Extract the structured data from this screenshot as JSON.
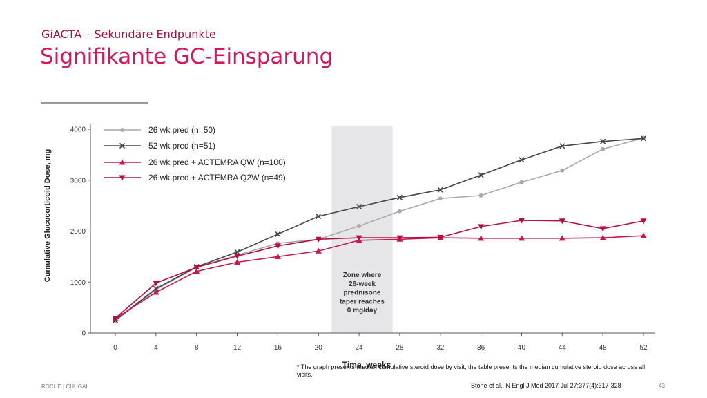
{
  "header": {
    "subtitle": "GiACTA – Sekundäre Endpunkte",
    "title": "Signifikante GC-Einsparung"
  },
  "chart_data": {
    "type": "line",
    "xlabel": "Time, weeks",
    "ylabel": "Cumulative Glucocorticoid Dose, mg",
    "x": [
      0,
      4,
      8,
      12,
      16,
      20,
      24,
      28,
      32,
      36,
      40,
      44,
      48,
      52
    ],
    "xticks": [
      "0",
      "4",
      "8",
      "12",
      "16",
      "20",
      "24",
      "28",
      "32",
      "36",
      "40",
      "44",
      "48",
      "52"
    ],
    "yticks": [
      "0",
      "1000",
      "2000",
      "3000",
      "4000"
    ],
    "xlim": [
      0,
      52
    ],
    "ylim": [
      0,
      4000
    ],
    "grid": false,
    "legend_position": "top-left",
    "shaded_region": {
      "x_start": 21.3,
      "x_end": 27.3,
      "label": "Zone where 26-week prednisone taper reaches 0 mg/day",
      "label_lines": [
        "Zone where",
        "26-week",
        "prednisone",
        "taper reaches",
        "0 mg/day"
      ]
    },
    "series": [
      {
        "name": "26 wk pred (n=50)",
        "color": "#a9a9a9",
        "marker": "circle",
        "values": [
          240,
          850,
          1290,
          1530,
          1760,
          1840,
          2100,
          2390,
          2640,
          2700,
          2960,
          3190,
          3610,
          3830
        ]
      },
      {
        "name": "52 wk pred (n=51)",
        "color": "#454545",
        "marker": "x",
        "values": [
          250,
          870,
          1300,
          1590,
          1940,
          2290,
          2480,
          2660,
          2810,
          3100,
          3400,
          3670,
          3760,
          3820
        ]
      },
      {
        "name": "26 wk pred + ACTEMRA QW (n=100)",
        "color": "#c8174e",
        "marker": "triangle-up",
        "values": [
          280,
          800,
          1210,
          1390,
          1500,
          1610,
          1820,
          1840,
          1870,
          1860,
          1860,
          1860,
          1870,
          1910
        ]
      },
      {
        "name": "26 wk pred + ACTEMRA Q2W (n=49)",
        "color": "#b4103f",
        "marker": "triangle-down",
        "values": [
          290,
          980,
          1290,
          1510,
          1710,
          1840,
          1870,
          1870,
          1880,
          2090,
          2210,
          2200,
          2050,
          2200
        ]
      }
    ]
  },
  "footnote": "* The graph presents median cumulative steroid dose by visit; the table presents the median cumulative steroid dose across all visits.",
  "footer": {
    "left": "ROCHE | CHUGAI",
    "citation": "Stone et al., N Engl J Med 2017 Jul 27;377(4):317-328",
    "page": "43"
  }
}
